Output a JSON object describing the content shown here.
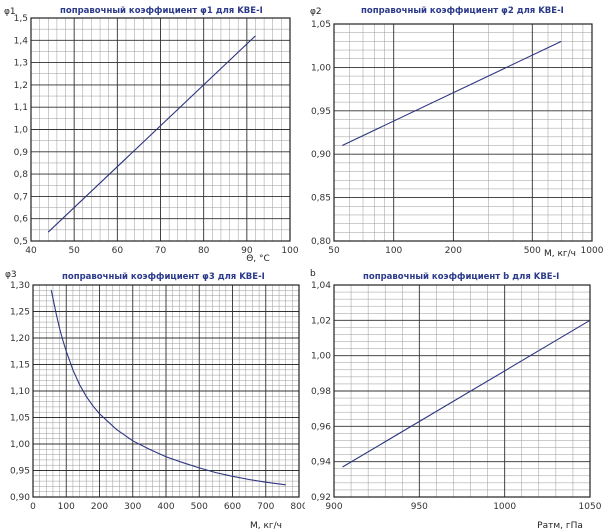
{
  "chart_data": [
    {
      "id": "phi1",
      "type": "line",
      "title": "поправочный коэффициент  φ1 для KBE-I",
      "ylabel": "φ1",
      "xlabel": "Θ, °C",
      "xscale": "linear",
      "xlim": [
        40,
        100
      ],
      "ylim": [
        0.5,
        1.5
      ],
      "x_ticks": [
        40,
        50,
        60,
        70,
        80,
        90,
        100
      ],
      "x_tick_labels": [
        "40",
        "50",
        "60",
        "70",
        "80",
        "90",
        "100"
      ],
      "y_ticks": [
        0.5,
        0.6,
        0.7,
        0.8,
        0.9,
        1.0,
        1.1,
        1.2,
        1.3,
        1.4,
        1.5
      ],
      "y_tick_labels": [
        "0,5",
        "0,6",
        "0,7",
        "0,8",
        "0,9",
        "1,0",
        "1,1",
        "1,2",
        "1,3",
        "1,4",
        "1,5"
      ],
      "grid": true,
      "series": [
        {
          "x": [
            44,
            92
          ],
          "y": [
            0.54,
            1.42
          ],
          "color": "#2d3580"
        }
      ]
    },
    {
      "id": "phi2",
      "type": "line",
      "title": "поправочный коэффициент  φ2 для KBE-I",
      "ylabel": "φ2",
      "xlabel": "M, кг/ч",
      "xscale": "log",
      "xlim": [
        50,
        1000
      ],
      "ylim": [
        0.8,
        1.05
      ],
      "x_ticks": [
        50,
        100,
        200,
        500,
        1000
      ],
      "x_tick_labels": [
        "50",
        "100",
        "200",
        "500",
        "1000"
      ],
      "y_ticks": [
        0.8,
        0.85,
        0.9,
        0.95,
        1.0,
        1.05
      ],
      "y_tick_labels": [
        "0,80",
        "0,85",
        "0,90",
        "0,95",
        "1,00",
        "1,05"
      ],
      "grid": true,
      "series": [
        {
          "x": [
            55,
            700
          ],
          "y": [
            0.91,
            1.03
          ],
          "color": "#2d3580"
        }
      ]
    },
    {
      "id": "phi3",
      "type": "line",
      "title": "поправочный коэффициент  φ3 для KBE-I",
      "ylabel": "φ3",
      "xlabel": "M, кг/ч",
      "xscale": "linear",
      "xlim": [
        0,
        800
      ],
      "ylim": [
        0.9,
        1.3
      ],
      "x_ticks": [
        0,
        100,
        200,
        300,
        400,
        500,
        600,
        700,
        800
      ],
      "x_tick_labels": [
        "0",
        "100",
        "200",
        "300",
        "400",
        "500",
        "600",
        "700",
        "800"
      ],
      "y_ticks": [
        0.9,
        0.95,
        1.0,
        1.05,
        1.1,
        1.15,
        1.2,
        1.25,
        1.3
      ],
      "y_tick_labels": [
        "0,90",
        "0,95",
        "1,00",
        "1,05",
        "1,10",
        "1,15",
        "1,20",
        "1,25",
        "1,30"
      ],
      "grid": true,
      "series": [
        {
          "x": [
            55,
            60,
            70,
            80,
            90,
            100,
            120,
            140,
            160,
            180,
            200,
            250,
            300,
            350,
            400,
            450,
            500,
            550,
            600,
            650,
            700,
            760
          ],
          "y": [
            1.29,
            1.275,
            1.245,
            1.218,
            1.195,
            1.175,
            1.14,
            1.112,
            1.09,
            1.072,
            1.057,
            1.028,
            1.006,
            0.99,
            0.976,
            0.965,
            0.955,
            0.946,
            0.939,
            0.933,
            0.928,
            0.923
          ],
          "color": "#2d3580"
        }
      ]
    },
    {
      "id": "b",
      "type": "line",
      "title": "поправочный коэффициент b для KBE-I",
      "ylabel": "b",
      "xlabel": "Pатм, гПа",
      "xscale": "linear",
      "xlim": [
        900,
        1050
      ],
      "ylim": [
        0.92,
        1.04
      ],
      "x_ticks": [
        900,
        950,
        1000,
        1050
      ],
      "x_tick_labels": [
        "900",
        "950",
        "1000",
        "1050"
      ],
      "y_ticks": [
        0.92,
        0.94,
        0.96,
        0.98,
        1.0,
        1.02,
        1.04
      ],
      "y_tick_labels": [
        "0,92",
        "0,94",
        "0,96",
        "0,98",
        "1,00",
        "1,02",
        "1,04"
      ],
      "grid": true,
      "series": [
        {
          "x": [
            905,
            1050
          ],
          "y": [
            0.937,
            1.02
          ],
          "color": "#2d3580"
        }
      ]
    }
  ]
}
